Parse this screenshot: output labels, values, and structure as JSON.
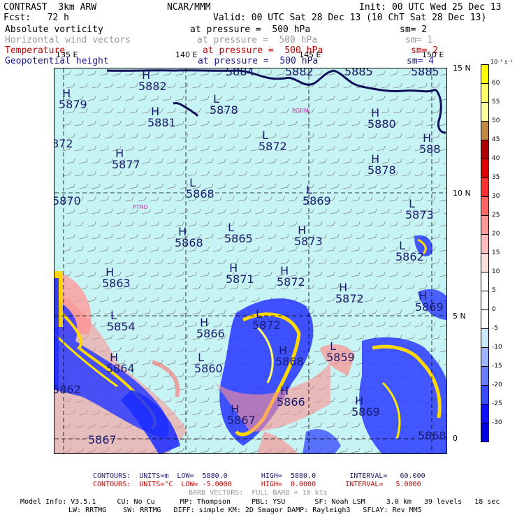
{
  "header": {
    "model": "CONTRAST  3km ARW",
    "forecast": "Fcst:   72 h",
    "center": "NCAR/MMM",
    "init": "Init: 00 UTC Wed 25 Dec 13",
    "valid": "Valid: 00 UTC Sat 28 Dec 13 (10 ChT Sat 28 Dec 13)"
  },
  "fields": [
    {
      "name": "Absolute vorticity",
      "pressure": "at pressure =  500 hPa",
      "smooth": "sm= 2",
      "color": "#000000"
    },
    {
      "name": "Horizontal wind vectors",
      "pressure": "at pressure =  500 hPa",
      "smooth": "sm= 1",
      "color": "#9a9a9a"
    },
    {
      "name": "Temperature",
      "pressure": "at pressure =  500 hPa",
      "smooth": "sm= 2",
      "color": "#c00000"
    },
    {
      "name": "Geopotential height",
      "pressure": "at pressure =  500 hPa",
      "smooth": "sm= 4",
      "color": "#1a1a8c"
    }
  ],
  "map": {
    "lon_labels": [
      "135 E",
      "140 E",
      "145 E",
      "150 E"
    ],
    "lat_labels": [
      "15 N",
      "10 N",
      "5 N",
      "0"
    ],
    "cities": [
      "PGUM",
      "PTRO"
    ],
    "centers": [
      {
        "t": "H",
        "v": "5882"
      },
      {
        "t": "H",
        "v": "5879"
      },
      {
        "t": "H",
        "v": "5881"
      },
      {
        "t": "L",
        "v": "5878"
      },
      {
        "t": "",
        "v": "5884"
      },
      {
        "t": "",
        "v": "5882"
      },
      {
        "t": "",
        "v": "5885"
      },
      {
        "t": "",
        "v": "5885"
      },
      {
        "t": "H",
        "v": "5880"
      },
      {
        "t": "L",
        "v": "5872"
      },
      {
        "t": "",
        "v": "872"
      },
      {
        "t": "H",
        "v": "5877"
      },
      {
        "t": "H",
        "v": "5878"
      },
      {
        "t": "H",
        "v": "588"
      },
      {
        "t": "L",
        "v": "5868"
      },
      {
        "t": "",
        "v": "5870"
      },
      {
        "t": "L",
        "v": "5869"
      },
      {
        "t": "L",
        "v": "5873"
      },
      {
        "t": "H",
        "v": "5868"
      },
      {
        "t": "L",
        "v": "5865"
      },
      {
        "t": "H",
        "v": "5873"
      },
      {
        "t": "L",
        "v": "5862"
      },
      {
        "t": "H",
        "v": "5863"
      },
      {
        "t": "H",
        "v": "5871"
      },
      {
        "t": "H",
        "v": "5872"
      },
      {
        "t": "H",
        "v": "5872"
      },
      {
        "t": "H",
        "v": "5869"
      },
      {
        "t": "L",
        "v": "5854"
      },
      {
        "t": "H",
        "v": "5866"
      },
      {
        "t": "L",
        "v": "5872"
      },
      {
        "t": "H",
        "v": "5864"
      },
      {
        "t": "L",
        "v": "5860"
      },
      {
        "t": "H",
        "v": "5868"
      },
      {
        "t": "L",
        "v": "5859"
      },
      {
        "t": "H",
        "v": "5866"
      },
      {
        "t": "H",
        "v": "5867"
      },
      {
        "t": "H",
        "v": "5869"
      },
      {
        "t": "",
        "v": "5867"
      },
      {
        "t": "",
        "v": "5862"
      },
      {
        "t": "",
        "v": "5868"
      }
    ]
  },
  "colorbar": {
    "unit": "10⁻⁵ s⁻¹",
    "levels": [
      "60",
      "55",
      "50",
      "45",
      "40",
      "35",
      "30",
      "25",
      "20",
      "15",
      "10",
      "5",
      "0",
      "-5",
      "-10",
      "-15",
      "-20",
      "-25",
      "-30"
    ],
    "colors": [
      "#ffff00",
      "#ffff66",
      "#ffffa0",
      "#c08840",
      "#b00000",
      "#e00000",
      "#ff3030",
      "#ff6666",
      "#ff9999",
      "#ffbbbb",
      "#ffdede",
      "#ffffff",
      "#ffffff",
      "#ffffff",
      "#cce8ff",
      "#9db6ff",
      "#6a7fff",
      "#3a4cff",
      "#1010ff",
      "#0000e0"
    ]
  },
  "footer": {
    "contours1": "CONTOURS:  UNITS=m  LOW=  5880.0        HIGH=  5880.0        INTERVAL=   60.000",
    "contours2": "CONTOURS:  UNITS=°C  LOW= -5.0000       HIGH=  0.0000       INTERVAL=   5.0000",
    "barbs": "BARB VECTORS:  FULL BARB = 10 kts",
    "info1": "Model Info: V3.5.1     CU: No Cu      MP: Thompson     PBL: YSU       SF: Noah LSM     3.0 km   39 levels   18 sec",
    "info2": "LW: RRTMG    SW: RRTMG   DIFF: simple KM: 2D Smagor DAMP: Rayleigh3   SFLAY: Rev MM5"
  }
}
